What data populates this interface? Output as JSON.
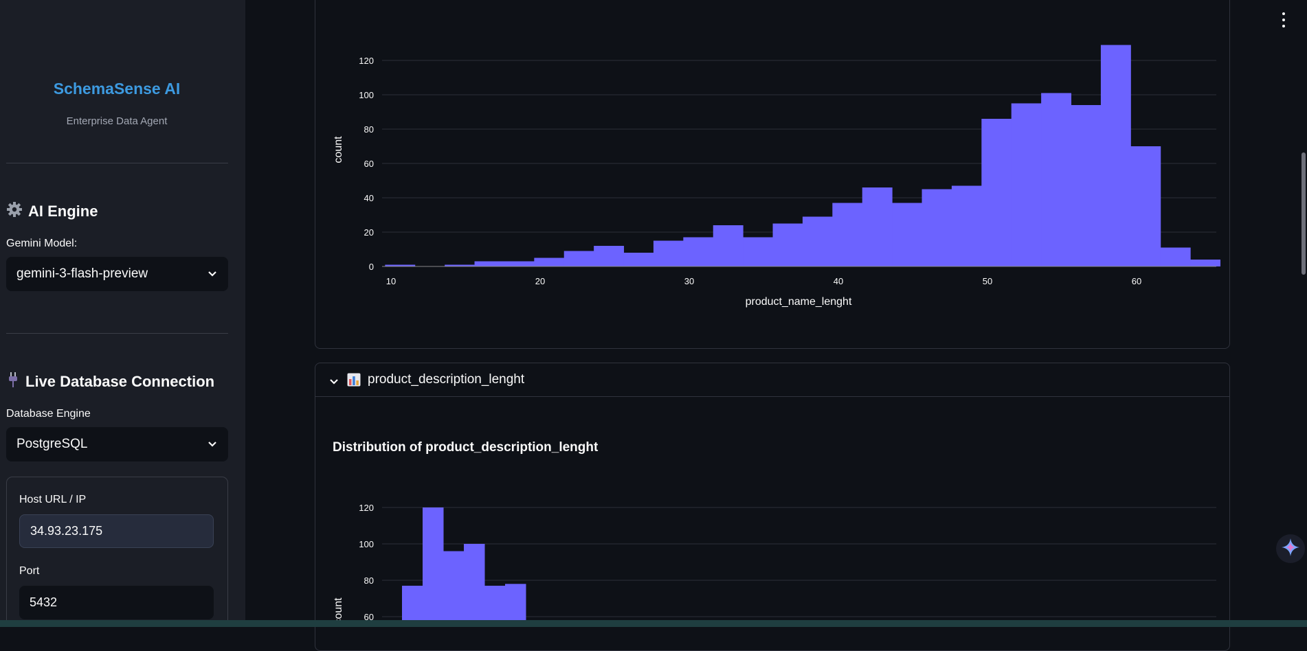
{
  "sidebar": {
    "brand_title": "SchemaSense AI",
    "brand_subtitle": "Enterprise Data Agent",
    "ai_engine": {
      "heading": "AI Engine",
      "icon": "gear-icon",
      "model_label": "Gemini Model:",
      "model_value": "gemini-3-flash-preview"
    },
    "db": {
      "heading": "Live Database Connection",
      "icon": "plug-icon",
      "engine_label": "Database Engine",
      "engine_value": "PostgreSQL",
      "host_label": "Host URL / IP",
      "host_value": "34.93.23.175",
      "port_label": "Port",
      "port_value": "5432"
    }
  },
  "main": {
    "expander2": {
      "icon": "bar-chart-icon",
      "label": "product_description_lenght",
      "chart_title": "Distribution of product_description_lenght"
    }
  },
  "colors": {
    "bar": "#6c63ff",
    "accent": "#3d9ae0"
  },
  "chart_data": [
    {
      "type": "bar",
      "subtype": "histogram",
      "xlabel": "product_name_lenght",
      "ylabel": "count",
      "xlim": [
        9.4,
        65.6
      ],
      "ylim": [
        0,
        130
      ],
      "x_ticks": [
        10,
        20,
        30,
        40,
        50,
        60
      ],
      "y_ticks": [
        0,
        20,
        40,
        60,
        80,
        100,
        120
      ],
      "bin_width": 2,
      "bins_start": [
        9.6,
        11.6,
        13.6,
        15.6,
        17.6,
        19.6,
        21.6,
        23.6,
        25.6,
        27.6,
        29.6,
        31.6,
        33.6,
        35.6,
        37.6,
        39.6,
        41.6,
        43.6,
        45.6,
        47.6,
        49.6,
        51.6,
        53.6,
        55.6,
        57.6,
        59.6,
        61.6,
        63.6
      ],
      "values": [
        1,
        0,
        1,
        3,
        3,
        5,
        9,
        12,
        8,
        15,
        17,
        24,
        17,
        25,
        29,
        37,
        46,
        37,
        45,
        47,
        86,
        95,
        101,
        94,
        129,
        70,
        11,
        4
      ],
      "grid": true
    },
    {
      "type": "bar",
      "subtype": "histogram",
      "title": "Distribution of product_description_lenght",
      "ylabel": "count",
      "ylim": [
        0,
        130
      ],
      "y_ticks": [
        60,
        80,
        100,
        120
      ],
      "values": [
        77,
        120,
        96,
        100,
        77,
        78
      ],
      "grid": true
    }
  ]
}
